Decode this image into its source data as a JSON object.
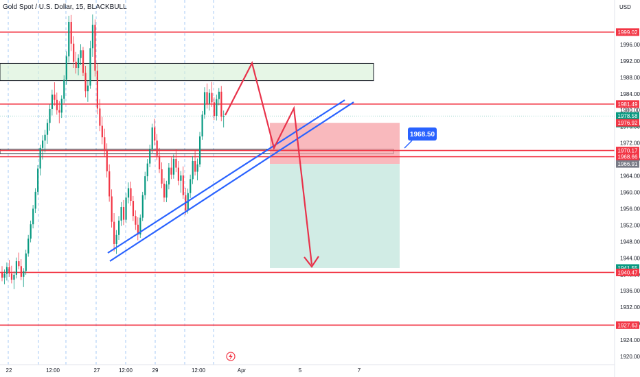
{
  "header": {
    "title": "Gold Spot / U.S. Dollar, 15, BLACKBULL",
    "currency": "USD"
  },
  "chart_data": {
    "type": "candlestick",
    "symbol": "Gold Spot / U.S. Dollar",
    "timeframe": "15",
    "broker": "BLACKBULL",
    "y_unit": "USD",
    "ylim": [
      1918.0,
      2003.5
    ],
    "y_ticks": [
      1920.0,
      1924.0,
      1928.0,
      1932.0,
      1936.0,
      1940.0,
      1944.0,
      1948.0,
      1952.0,
      1956.0,
      1960.0,
      1964.0,
      1968.0,
      1972.0,
      1976.0,
      1980.0,
      1984.0,
      1988.0,
      1992.0,
      1996.0
    ],
    "x_ticks": [
      "22",
      "12:00",
      "27",
      "12:00",
      "29",
      "12:00",
      "Apr",
      "5",
      "7"
    ],
    "current_price": 1978.58,
    "countdown": "14:06",
    "price_labels": [
      {
        "value": 1999.02,
        "color": "#f23645"
      },
      {
        "value": 1981.49,
        "color": "#f23645"
      },
      {
        "value": 1978.58,
        "color": "#089981"
      },
      {
        "value": 1976.92,
        "color": "#f23645"
      },
      {
        "value": 1970.17,
        "color": "#f23645"
      },
      {
        "value": 1968.66,
        "color": "#f23645"
      },
      {
        "value": 1966.91,
        "color": "#787b86"
      },
      {
        "value": 1941.55,
        "color": "#089981"
      },
      {
        "value": 1940.47,
        "color": "#f23645"
      },
      {
        "value": 1927.63,
        "color": "#f23645"
      }
    ],
    "horizontal_levels": [
      1999.02,
      1981.49,
      1970.17,
      1968.66,
      1940.47,
      1927.63
    ],
    "zones": [
      {
        "kind": "supply",
        "from": 1987.2,
        "to": 1991.4
      },
      {
        "kind": "entry",
        "from": 1969.4,
        "to": 1970.5
      }
    ],
    "position": {
      "type": "short",
      "entry": 1966.91,
      "stop": 1976.92,
      "target": 1941.55
    },
    "callout": 1968.5,
    "candles": [
      [
        1940.5,
        1942.0,
        1938.3,
        1939.2
      ],
      [
        1939.2,
        1941.2,
        1937.6,
        1940.1
      ],
      [
        1940.1,
        1942.9,
        1938.5,
        1941.8
      ],
      [
        1941.8,
        1943.5,
        1939.4,
        1940.2
      ],
      [
        1940.2,
        1942.1,
        1937.8,
        1938.7
      ],
      [
        1938.7,
        1940.8,
        1936.4,
        1939.9
      ],
      [
        1939.9,
        1944.1,
        1939.0,
        1943.2
      ],
      [
        1943.2,
        1945.3,
        1941.2,
        1942.0
      ],
      [
        1942.0,
        1943.7,
        1938.6,
        1939.4
      ],
      [
        1939.4,
        1941.5,
        1936.9,
        1940.8
      ],
      [
        1940.8,
        1946.0,
        1939.9,
        1945.1
      ],
      [
        1945.1,
        1949.6,
        1944.3,
        1948.7
      ],
      [
        1948.7,
        1953.1,
        1947.8,
        1952.2
      ],
      [
        1952.2,
        1956.9,
        1951.2,
        1956.0
      ],
      [
        1956.0,
        1961.0,
        1954.9,
        1960.1
      ],
      [
        1960.1,
        1966.6,
        1959.3,
        1965.8
      ],
      [
        1965.8,
        1971.6,
        1964.1,
        1970.8
      ],
      [
        1970.8,
        1973.9,
        1968.0,
        1972.6
      ],
      [
        1972.6,
        1975.2,
        1969.7,
        1974.0
      ],
      [
        1974.0,
        1977.8,
        1971.8,
        1976.9
      ],
      [
        1976.9,
        1981.4,
        1975.0,
        1980.3
      ],
      [
        1980.3,
        1985.0,
        1978.7,
        1983.8
      ],
      [
        1983.8,
        1986.8,
        1981.1,
        1982.5
      ],
      [
        1982.5,
        1984.3,
        1978.9,
        1980.0
      ],
      [
        1980.0,
        1982.2,
        1976.8,
        1979.4
      ],
      [
        1979.4,
        1983.6,
        1978.1,
        1982.8
      ],
      [
        1982.8,
        1988.5,
        1981.7,
        1987.4
      ],
      [
        1987.4,
        1994.3,
        1986.2,
        1993.1
      ],
      [
        1993.1,
        2003.0,
        1991.6,
        2001.5
      ],
      [
        2001.5,
        2003.2,
        1994.4,
        1996.2
      ],
      [
        1996.2,
        1998.0,
        1990.3,
        1991.8
      ],
      [
        1991.8,
        1994.2,
        1988.9,
        1990.3
      ],
      [
        1990.3,
        1993.6,
        1988.5,
        1992.7
      ],
      [
        1992.7,
        1996.1,
        1991.0,
        1994.6
      ],
      [
        1994.6,
        1995.4,
        1988.3,
        1989.1
      ],
      [
        1989.1,
        1990.8,
        1983.1,
        1984.6
      ],
      [
        1984.6,
        1987.2,
        1982.0,
        1986.0
      ],
      [
        1986.0,
        1996.9,
        1985.2,
        1995.1
      ],
      [
        1995.1,
        2003.3,
        1993.0,
        2000.8
      ],
      [
        2000.8,
        2002.1,
        1988.2,
        1989.6
      ],
      [
        1989.6,
        1991.4,
        1979.0,
        1980.4
      ],
      [
        1980.4,
        1982.7,
        1974.9,
        1976.2
      ],
      [
        1976.2,
        1978.4,
        1971.7,
        1973.4
      ],
      [
        1973.4,
        1975.5,
        1968.8,
        1970.2
      ],
      [
        1970.2,
        1971.9,
        1963.6,
        1965.1
      ],
      [
        1965.1,
        1966.8,
        1957.7,
        1959.0
      ],
      [
        1959.0,
        1960.7,
        1951.4,
        1952.8
      ],
      [
        1952.8,
        1954.9,
        1945.6,
        1947.4
      ],
      [
        1947.4,
        1950.8,
        1945.0,
        1949.6
      ],
      [
        1949.6,
        1954.2,
        1948.4,
        1953.1
      ],
      [
        1953.1,
        1957.6,
        1951.8,
        1956.4
      ],
      [
        1956.4,
        1958.1,
        1952.0,
        1953.3
      ],
      [
        1953.3,
        1959.8,
        1952.5,
        1958.7
      ],
      [
        1958.7,
        1962.4,
        1957.3,
        1961.0
      ],
      [
        1961.0,
        1962.6,
        1956.7,
        1957.9
      ],
      [
        1957.9,
        1959.1,
        1953.0,
        1954.2
      ],
      [
        1954.2,
        1955.6,
        1950.8,
        1952.1
      ],
      [
        1952.1,
        1953.9,
        1948.3,
        1949.7
      ],
      [
        1949.7,
        1954.6,
        1948.9,
        1953.8
      ],
      [
        1953.8,
        1960.1,
        1953.0,
        1959.3
      ],
      [
        1959.3,
        1965.0,
        1958.2,
        1963.9
      ],
      [
        1963.9,
        1968.1,
        1962.7,
        1967.0
      ],
      [
        1967.0,
        1971.6,
        1966.1,
        1970.4
      ],
      [
        1970.4,
        1976.7,
        1969.6,
        1975.8
      ],
      [
        1975.8,
        1977.9,
        1971.4,
        1972.6
      ],
      [
        1972.6,
        1974.2,
        1967.8,
        1968.9
      ],
      [
        1968.9,
        1970.8,
        1964.7,
        1965.6
      ],
      [
        1965.6,
        1967.3,
        1961.0,
        1962.1
      ],
      [
        1962.1,
        1963.4,
        1957.6,
        1958.7
      ],
      [
        1958.7,
        1962.8,
        1957.6,
        1961.9
      ],
      [
        1961.9,
        1967.1,
        1960.7,
        1966.0
      ],
      [
        1966.0,
        1968.5,
        1963.2,
        1964.3
      ],
      [
        1964.3,
        1969.2,
        1963.3,
        1968.1
      ],
      [
        1968.1,
        1970.6,
        1964.9,
        1966.0
      ],
      [
        1966.0,
        1967.6,
        1961.7,
        1962.8
      ],
      [
        1962.8,
        1965.2,
        1959.9,
        1964.1
      ],
      [
        1964.1,
        1966.3,
        1958.4,
        1959.3
      ],
      [
        1959.3,
        1961.1,
        1954.5,
        1955.6
      ],
      [
        1955.6,
        1960.9,
        1954.8,
        1959.8
      ],
      [
        1959.8,
        1964.3,
        1958.6,
        1963.2
      ],
      [
        1963.2,
        1968.8,
        1962.0,
        1967.6
      ],
      [
        1967.6,
        1970.1,
        1964.1,
        1965.0
      ],
      [
        1965.0,
        1968.2,
        1962.9,
        1966.8
      ],
      [
        1966.8,
        1974.7,
        1966.1,
        1973.6
      ],
      [
        1973.6,
        1979.8,
        1972.8,
        1978.9
      ],
      [
        1978.9,
        1985.6,
        1977.9,
        1984.4
      ],
      [
        1984.4,
        1986.5,
        1980.4,
        1981.6
      ],
      [
        1981.6,
        1985.1,
        1979.9,
        1984.2
      ],
      [
        1984.2,
        1986.9,
        1980.8,
        1981.9
      ],
      [
        1981.9,
        1983.1,
        1977.6,
        1978.6
      ],
      [
        1978.6,
        1983.8,
        1977.5,
        1982.7
      ],
      [
        1982.7,
        1985.4,
        1981.2,
        1984.5
      ],
      [
        1984.5,
        1985.9,
        1977.3,
        1978.4
      ],
      [
        1978.4,
        1979.9,
        1975.8,
        1978.58
      ]
    ]
  }
}
